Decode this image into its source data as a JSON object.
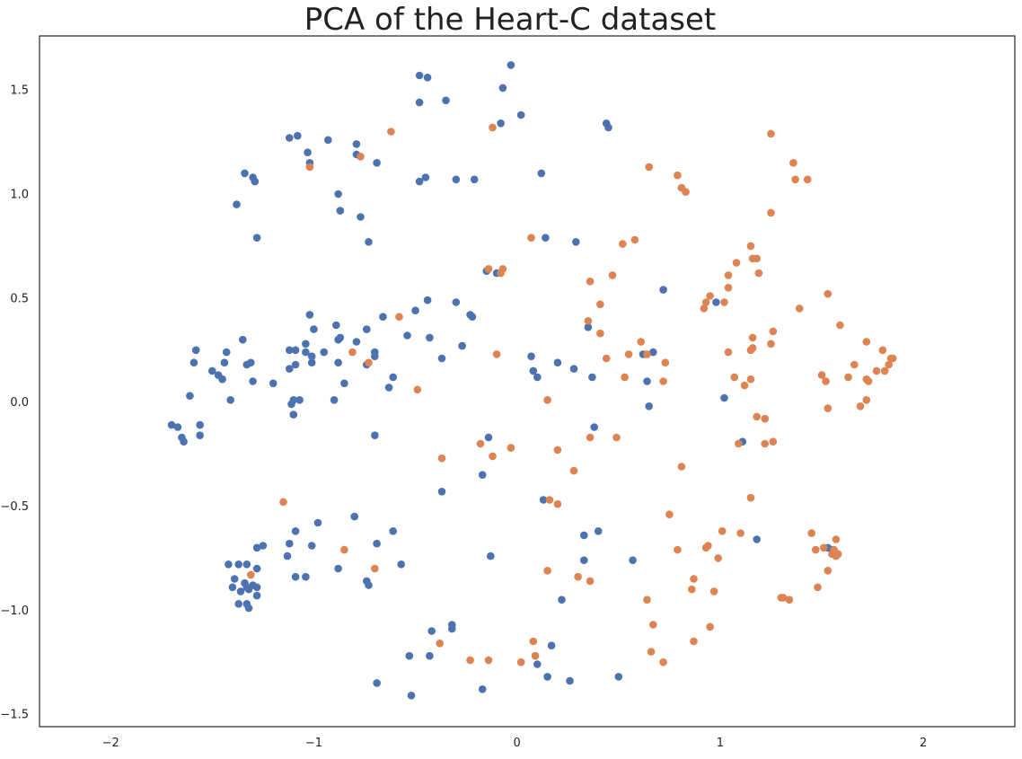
{
  "chart_data": {
    "type": "scatter",
    "title": "PCA of the Heart-C dataset",
    "xlabel": "",
    "ylabel": "",
    "xlim": [
      -2.35,
      2.45
    ],
    "ylim": [
      -1.56,
      1.76
    ],
    "x_ticks": [
      -2,
      -1,
      0,
      1,
      2
    ],
    "x_tick_labels": [
      "−2",
      "−1",
      "0",
      "1",
      "2"
    ],
    "y_ticks": [
      -1.5,
      -1.0,
      -0.5,
      0.0,
      0.5,
      1.0,
      1.5
    ],
    "y_tick_labels": [
      "−1.5",
      "−1.0",
      "−0.5",
      "0.0",
      "0.5",
      "1.0",
      "1.5"
    ],
    "grid": false,
    "legend": "none",
    "series": [
      {
        "color": "#4c72b0",
        "points": [
          [
            -0.48,
            1.57
          ],
          [
            -0.44,
            1.56
          ],
          [
            -0.48,
            1.44
          ],
          [
            -0.35,
            1.45
          ],
          [
            -0.07,
            1.51
          ],
          [
            -0.03,
            1.62
          ],
          [
            0.02,
            1.38
          ],
          [
            -0.08,
            1.34
          ],
          [
            0.44,
            1.34
          ],
          [
            0.45,
            1.32
          ],
          [
            -1.12,
            1.27
          ],
          [
            -1.08,
            1.28
          ],
          [
            -0.93,
            1.26
          ],
          [
            -0.79,
            1.24
          ],
          [
            -1.03,
            1.2
          ],
          [
            -0.79,
            1.19
          ],
          [
            -1.02,
            1.15
          ],
          [
            -0.69,
            1.15
          ],
          [
            -1.34,
            1.1
          ],
          [
            -1.3,
            1.08
          ],
          [
            -1.29,
            1.06
          ],
          [
            -0.45,
            1.08
          ],
          [
            -0.48,
            1.06
          ],
          [
            -0.3,
            1.07
          ],
          [
            -0.21,
            1.07
          ],
          [
            0.12,
            1.1
          ],
          [
            -0.88,
            1.0
          ],
          [
            -1.38,
            0.95
          ],
          [
            -0.87,
            0.92
          ],
          [
            -0.77,
            0.89
          ],
          [
            -1.28,
            0.79
          ],
          [
            -0.73,
            0.77
          ],
          [
            0.14,
            0.79
          ],
          [
            0.29,
            0.77
          ],
          [
            -0.15,
            0.63
          ],
          [
            -0.1,
            0.62
          ],
          [
            0.72,
            0.54
          ],
          [
            -0.44,
            0.49
          ],
          [
            -0.3,
            0.48
          ],
          [
            -0.5,
            0.44
          ],
          [
            -1.58,
            0.25
          ],
          [
            -1.43,
            0.24
          ],
          [
            -1.35,
            0.3
          ],
          [
            -1.12,
            0.25
          ],
          [
            -1.09,
            0.25
          ],
          [
            -1.02,
            0.42
          ],
          [
            -0.89,
            0.37
          ],
          [
            -0.87,
            0.31
          ],
          [
            -0.88,
            0.3
          ],
          [
            -0.74,
            0.35
          ],
          [
            -0.79,
            0.29
          ],
          [
            -0.7,
            0.24
          ],
          [
            -0.66,
            0.41
          ],
          [
            -0.23,
            0.42
          ],
          [
            -0.22,
            0.41
          ],
          [
            -0.43,
            0.31
          ],
          [
            -0.54,
            0.32
          ],
          [
            -0.27,
            0.27
          ],
          [
            -1.04,
            0.28
          ],
          [
            -1.0,
            0.35
          ],
          [
            -1.59,
            0.19
          ],
          [
            -1.44,
            0.19
          ],
          [
            -1.31,
            0.19
          ],
          [
            -1.33,
            0.18
          ],
          [
            -1.5,
            0.15
          ],
          [
            -1.47,
            0.13
          ],
          [
            -1.45,
            0.11
          ],
          [
            -1.12,
            0.16
          ],
          [
            -1.09,
            0.18
          ],
          [
            -1.04,
            0.24
          ],
          [
            -1.01,
            0.22
          ],
          [
            -1.01,
            0.19
          ],
          [
            -0.95,
            0.24
          ],
          [
            -0.88,
            0.19
          ],
          [
            -0.74,
            0.18
          ],
          [
            -0.7,
            0.22
          ],
          [
            -0.37,
            0.21
          ],
          [
            -0.85,
            0.09
          ],
          [
            -1.3,
            0.1
          ],
          [
            -1.2,
            0.09
          ],
          [
            -0.61,
            0.12
          ],
          [
            -0.63,
            0.07
          ],
          [
            -1.61,
            0.03
          ],
          [
            -1.41,
            0.01
          ],
          [
            -1.1,
            0.01
          ],
          [
            -1.07,
            0.01
          ],
          [
            -1.11,
            -0.01
          ],
          [
            -0.9,
            0.01
          ],
          [
            -1.1,
            -0.06
          ],
          [
            -1.7,
            -0.11
          ],
          [
            -1.67,
            -0.12
          ],
          [
            -1.56,
            -0.11
          ],
          [
            -1.65,
            -0.17
          ],
          [
            -1.64,
            -0.19
          ],
          [
            -1.56,
            -0.16
          ],
          [
            -0.7,
            -0.16
          ],
          [
            0.07,
            0.22
          ],
          [
            0.2,
            0.19
          ],
          [
            0.28,
            0.16
          ],
          [
            0.08,
            0.15
          ],
          [
            0.1,
            0.12
          ],
          [
            0.37,
            0.12
          ],
          [
            0.62,
            0.23
          ],
          [
            0.67,
            0.24
          ],
          [
            0.64,
            0.1
          ],
          [
            0.35,
            0.36
          ],
          [
            0.98,
            0.48
          ],
          [
            1.02,
            0.02
          ],
          [
            0.65,
            -0.02
          ],
          [
            0.38,
            -0.12
          ],
          [
            -0.14,
            -0.17
          ],
          [
            -0.17,
            -0.35
          ],
          [
            -0.37,
            -0.43
          ],
          [
            0.13,
            -0.47
          ],
          [
            0.4,
            -0.62
          ],
          [
            0.33,
            -0.64
          ],
          [
            1.11,
            -0.19
          ],
          [
            1.18,
            -0.66
          ],
          [
            1.53,
            -0.7
          ],
          [
            1.55,
            -0.71
          ],
          [
            -0.8,
            -0.55
          ],
          [
            -0.98,
            -0.58
          ],
          [
            -1.09,
            -0.62
          ],
          [
            -0.61,
            -0.62
          ],
          [
            -1.28,
            -0.7
          ],
          [
            -1.25,
            -0.69
          ],
          [
            -1.12,
            -0.68
          ],
          [
            -1.01,
            -0.69
          ],
          [
            -0.69,
            -0.68
          ],
          [
            -1.13,
            -0.74
          ],
          [
            -0.13,
            -0.74
          ],
          [
            -1.42,
            -0.78
          ],
          [
            -1.37,
            -0.78
          ],
          [
            -1.33,
            -0.78
          ],
          [
            -1.28,
            -0.8
          ],
          [
            -0.88,
            -0.8
          ],
          [
            -0.57,
            -0.78
          ],
          [
            -1.09,
            -0.84
          ],
          [
            -1.04,
            -0.84
          ],
          [
            -1.39,
            -0.85
          ],
          [
            -1.34,
            -0.87
          ],
          [
            -1.33,
            -0.89
          ],
          [
            -1.4,
            -0.89
          ],
          [
            -1.36,
            -0.91
          ],
          [
            -1.32,
            -0.9
          ],
          [
            -1.3,
            -0.88
          ],
          [
            -1.28,
            -0.89
          ],
          [
            -1.28,
            -0.93
          ],
          [
            -0.74,
            -0.86
          ],
          [
            -0.73,
            -0.88
          ],
          [
            -1.37,
            -0.97
          ],
          [
            -1.33,
            -0.97
          ],
          [
            -1.32,
            -0.99
          ],
          [
            0.33,
            -0.76
          ],
          [
            0.57,
            -0.76
          ],
          [
            0.22,
            -0.95
          ],
          [
            -0.32,
            -1.07
          ],
          [
            -0.32,
            -1.09
          ],
          [
            -0.42,
            -1.1
          ],
          [
            0.17,
            -1.17
          ],
          [
            -0.53,
            -1.22
          ],
          [
            -0.43,
            -1.22
          ],
          [
            0.1,
            -1.26
          ],
          [
            0.15,
            -1.32
          ],
          [
            0.26,
            -1.34
          ],
          [
            0.5,
            -1.32
          ],
          [
            -0.17,
            -1.38
          ],
          [
            -0.69,
            -1.35
          ],
          [
            -0.52,
            -1.41
          ]
        ]
      },
      {
        "color": "#dd8452",
        "points": [
          [
            -0.62,
            1.3
          ],
          [
            -0.12,
            1.32
          ],
          [
            -0.77,
            1.18
          ],
          [
            -1.02,
            1.13
          ],
          [
            1.25,
            1.29
          ],
          [
            1.36,
            1.15
          ],
          [
            1.37,
            1.07
          ],
          [
            1.43,
            1.07
          ],
          [
            0.65,
            1.13
          ],
          [
            0.79,
            1.09
          ],
          [
            0.81,
            1.03
          ],
          [
            0.83,
            1.01
          ],
          [
            1.25,
            0.91
          ],
          [
            0.07,
            0.79
          ],
          [
            0.58,
            0.78
          ],
          [
            0.52,
            0.76
          ],
          [
            1.15,
            0.75
          ],
          [
            1.16,
            0.69
          ],
          [
            1.18,
            0.69
          ],
          [
            1.08,
            0.67
          ],
          [
            1.04,
            0.61
          ],
          [
            1.19,
            0.62
          ],
          [
            -0.14,
            0.64
          ],
          [
            -0.07,
            0.64
          ],
          [
            -0.08,
            0.62
          ],
          [
            0.47,
            0.61
          ],
          [
            0.36,
            0.58
          ],
          [
            1.53,
            0.52
          ],
          [
            1.04,
            0.55
          ],
          [
            0.95,
            0.51
          ],
          [
            0.93,
            0.48
          ],
          [
            1.02,
            0.48
          ],
          [
            0.92,
            0.45
          ],
          [
            1.39,
            0.45
          ],
          [
            0.41,
            0.47
          ],
          [
            -0.58,
            0.41
          ],
          [
            0.35,
            0.39
          ],
          [
            1.26,
            0.34
          ],
          [
            1.16,
            0.31
          ],
          [
            1.25,
            0.28
          ],
          [
            1.59,
            0.37
          ],
          [
            1.72,
            0.29
          ],
          [
            0.41,
            0.33
          ],
          [
            0.61,
            0.29
          ],
          [
            1.15,
            0.25
          ],
          [
            1.16,
            0.26
          ],
          [
            1.04,
            0.24
          ],
          [
            -0.81,
            0.24
          ],
          [
            -0.1,
            0.23
          ],
          [
            -0.73,
            0.19
          ],
          [
            0.55,
            0.23
          ],
          [
            0.44,
            0.21
          ],
          [
            0.64,
            0.23
          ],
          [
            0.73,
            0.19
          ],
          [
            1.8,
            0.25
          ],
          [
            1.85,
            0.21
          ],
          [
            1.84,
            0.21
          ],
          [
            1.83,
            0.18
          ],
          [
            1.81,
            0.15
          ],
          [
            1.77,
            0.15
          ],
          [
            1.66,
            0.18
          ],
          [
            1.5,
            0.13
          ],
          [
            1.52,
            0.1
          ],
          [
            1.63,
            0.12
          ],
          [
            1.72,
            0.11
          ],
          [
            1.73,
            0.1
          ],
          [
            1.07,
            0.12
          ],
          [
            1.15,
            0.11
          ],
          [
            1.12,
            0.08
          ],
          [
            0.53,
            0.12
          ],
          [
            0.72,
            0.1
          ],
          [
            0.15,
            0.01
          ],
          [
            1.72,
            0.01
          ],
          [
            1.53,
            -0.03
          ],
          [
            1.69,
            -0.02
          ],
          [
            -0.49,
            0.06
          ],
          [
            0.36,
            -0.17
          ],
          [
            0.49,
            -0.17
          ],
          [
            1.18,
            -0.07
          ],
          [
            1.22,
            -0.08
          ],
          [
            -0.18,
            -0.2
          ],
          [
            -0.03,
            -0.22
          ],
          [
            0.2,
            -0.23
          ],
          [
            -0.12,
            -0.26
          ],
          [
            -0.37,
            -0.27
          ],
          [
            0.28,
            -0.33
          ],
          [
            0.81,
            -0.31
          ],
          [
            1.09,
            -0.2
          ],
          [
            1.22,
            -0.2
          ],
          [
            1.26,
            -0.19
          ],
          [
            0.16,
            -0.47
          ],
          [
            0.2,
            -0.49
          ],
          [
            1.15,
            -0.46
          ],
          [
            -1.15,
            -0.48
          ],
          [
            0.75,
            -0.54
          ],
          [
            1.01,
            -0.62
          ],
          [
            1.1,
            -0.63
          ],
          [
            1.45,
            -0.63
          ],
          [
            0.79,
            -0.71
          ],
          [
            0.93,
            -0.7
          ],
          [
            0.94,
            -0.69
          ],
          [
            1.47,
            -0.71
          ],
          [
            1.51,
            -0.7
          ],
          [
            1.57,
            -0.66
          ],
          [
            1.56,
            -0.71
          ],
          [
            1.55,
            -0.73
          ],
          [
            1.57,
            -0.74
          ],
          [
            1.58,
            -0.73
          ],
          [
            -0.85,
            -0.71
          ],
          [
            0.99,
            -0.75
          ],
          [
            -0.7,
            -0.8
          ],
          [
            -1.31,
            -0.83
          ],
          [
            0.15,
            -0.81
          ],
          [
            0.3,
            -0.84
          ],
          [
            0.36,
            -0.86
          ],
          [
            0.87,
            -0.85
          ],
          [
            1.53,
            -0.81
          ],
          [
            0.86,
            -0.9
          ],
          [
            0.97,
            -0.91
          ],
          [
            1.48,
            -0.89
          ],
          [
            0.64,
            -0.95
          ],
          [
            1.3,
            -0.94
          ],
          [
            1.31,
            -0.94
          ],
          [
            1.34,
            -0.95
          ],
          [
            0.95,
            -1.08
          ],
          [
            0.67,
            -1.07
          ],
          [
            -0.38,
            -1.16
          ],
          [
            0.08,
            -1.15
          ],
          [
            0.87,
            -1.15
          ],
          [
            0.66,
            -1.2
          ],
          [
            0.09,
            -1.22
          ],
          [
            -0.23,
            -1.24
          ],
          [
            -0.14,
            -1.24
          ],
          [
            0.02,
            -1.25
          ],
          [
            0.72,
            -1.25
          ]
        ]
      }
    ]
  }
}
